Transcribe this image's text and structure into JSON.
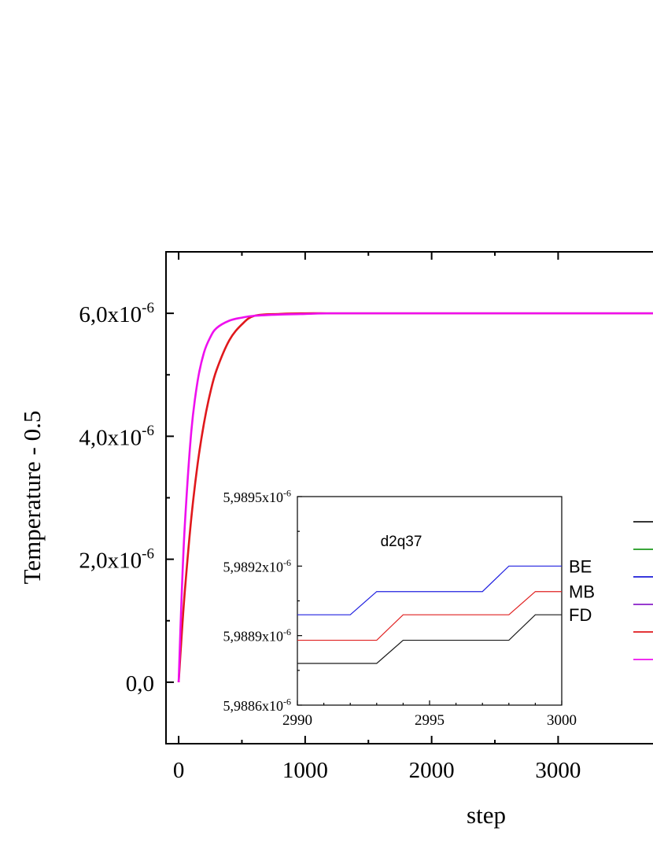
{
  "chart_data": [
    {
      "type": "line",
      "xlabel": "step",
      "ylabel": "Temperature - 0.5",
      "xlim": [
        -100,
        3750
      ],
      "ylim": [
        -1e-06,
        7e-06
      ],
      "x_ticks": [
        0,
        1000,
        2000,
        3000
      ],
      "x_tick_labels": [
        "0",
        "1000",
        "2000",
        "3000"
      ],
      "y_ticks": [
        0,
        2e-06,
        4e-06,
        6e-06
      ],
      "y_tick_labels": [
        {
          "mantissa": "0,0",
          "exp": ""
        },
        {
          "mantissa": "2,0x10",
          "exp": "-6"
        },
        {
          "mantissa": "4,0x10",
          "exp": "-6"
        },
        {
          "mantissa": "6,0x10",
          "exp": "-6"
        }
      ],
      "grid": false,
      "series": [
        {
          "color": "#e0181c",
          "x": [
            0,
            25,
            50,
            100,
            150,
            200,
            250,
            300,
            400,
            500,
            600,
            800,
            1000,
            1200,
            1500,
            2000,
            2500,
            3000,
            3750
          ],
          "y": [
            0,
            8e-07,
            1.51e-06,
            2.67e-06,
            3.55e-06,
            4.21e-06,
            4.71e-06,
            5.08e-06,
            5.56e-06,
            5.82e-06,
            5.96e-06,
            5.99e-06,
            6e-06,
            6e-06,
            6e-06,
            6e-06,
            6e-06,
            6e-06,
            6e-06
          ]
        },
        {
          "color": "#ee10ee",
          "x": [
            0,
            25,
            50,
            100,
            150,
            200,
            250,
            300,
            400,
            500,
            600,
            800,
            1000,
            1200,
            1500,
            2000,
            2500,
            3000,
            3750
          ],
          "y": [
            0,
            1.48e-06,
            2.6e-06,
            4.08e-06,
            4.9e-06,
            5.36e-06,
            5.61e-06,
            5.76e-06,
            5.88e-06,
            5.93e-06,
            5.96e-06,
            5.98e-06,
            5.99e-06,
            6e-06,
            6e-06,
            6e-06,
            6e-06,
            6e-06,
            6e-06
          ]
        }
      ],
      "legend_swatches": [
        "#1a1a1a",
        "#1e9a1e",
        "#1b1bd8",
        "#8a1fc8",
        "#e0181c",
        "#ee10ee"
      ]
    },
    {
      "type": "line",
      "annotation": "d2q37",
      "xlim": [
        2990,
        3000
      ],
      "ylim": [
        5.9886e-06,
        5.9895e-06
      ],
      "x_tick_labels": [
        "2990",
        "2995",
        "3000"
      ],
      "x_ticks": [
        2990,
        2995,
        3000
      ],
      "y_ticks": [
        5.9886e-06,
        5.9889e-06,
        5.9892e-06,
        5.9895e-06
      ],
      "y_tick_labels": [
        {
          "mantissa": "5,9886x10",
          "exp": "-6"
        },
        {
          "mantissa": "5,9889x10",
          "exp": "-6"
        },
        {
          "mantissa": "5,9892x10",
          "exp": "-6"
        },
        {
          "mantissa": "5,9895x10",
          "exp": "-6"
        }
      ],
      "series": [
        {
          "name": "BE",
          "color": "#2020e0",
          "x": [
            2990,
            2992,
            2993,
            2997,
            2998,
            3000
          ],
          "y": [
            5.98899e-06,
            5.98899e-06,
            5.98909e-06,
            5.98909e-06,
            5.9892e-06,
            5.9892e-06
          ]
        },
        {
          "name": "MB",
          "color": "#e02020",
          "x": [
            2990,
            2993,
            2994,
            2998,
            2999,
            3000
          ],
          "y": [
            5.98888e-06,
            5.98888e-06,
            5.98899e-06,
            5.98899e-06,
            5.98909e-06,
            5.98909e-06
          ]
        },
        {
          "name": "FD",
          "color": "#1a1a1a",
          "x": [
            2990,
            2993,
            2994,
            2998,
            2999,
            3000
          ],
          "y": [
            5.98878e-06,
            5.98878e-06,
            5.98888e-06,
            5.98888e-06,
            5.98899e-06,
            5.98899e-06
          ]
        }
      ]
    }
  ]
}
